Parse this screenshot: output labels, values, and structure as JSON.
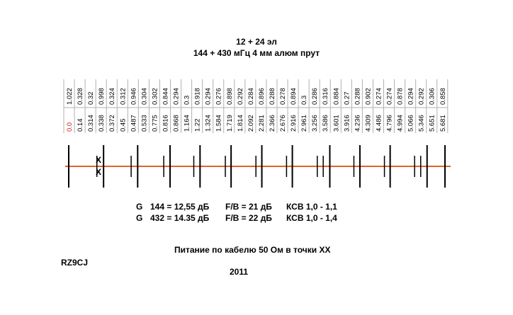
{
  "title": {
    "line1": "12 + 24 эл",
    "line2": "144 + 430 мГц  4 мм алюм прут"
  },
  "spacings": [
    "1.022",
    "0.328",
    "0.32",
    "0.998",
    "0.324",
    "0.312",
    "0.946",
    "0.304",
    "0.302",
    "0.844",
    "0.294",
    "0.3",
    "0.918",
    "0.294",
    "0.276",
    "0.898",
    "0.292",
    "0.284",
    "0.896",
    "0.288",
    "0.278",
    "0.894",
    "0.3",
    "0.286",
    "0.316",
    "0.884",
    "0.27",
    "0.288",
    "0.902",
    "0.274",
    "0.274",
    "0.878",
    "0.294",
    "0.292",
    "0.306",
    "0.858"
  ],
  "positions": [
    "0.0",
    "0.14",
    "0.314",
    "0.338",
    "0.372",
    "0.45",
    "0.487",
    "0.533",
    "0.775",
    "0.816",
    "0.868",
    "1.164",
    "1.22",
    "1.324",
    "1.584",
    "1.719",
    "1.814",
    "2.092",
    "2.281",
    "2.366",
    "2.676",
    "2.916",
    "2.961",
    "3.256",
    "3.586",
    "3.601",
    "3.916",
    "4.236",
    "4.309",
    "4.486",
    "4.796",
    "4.994",
    "5.066",
    "5.346",
    "5.651",
    "5.681"
  ],
  "markers": [
    "X",
    "X"
  ],
  "gain": [
    {
      "g": "G",
      "freq": "144 = 12,55 дБ",
      "fb": "F/B = 21 дБ",
      "ksv": "КСВ  1,0 - 1,1"
    },
    {
      "g": "G",
      "freq": "432 = 14.35 дБ",
      "fb": "F/B = 22 дБ",
      "ksv": "КСВ  1,0 - 1,4"
    }
  ],
  "feed_note": "Питание по кабелю 50 Ом в точки ХХ",
  "author": "RZ9CJ",
  "year": "2011",
  "colors": {
    "boom": "#e0642a",
    "zero_value": "#d41c1c",
    "lines": "#000000",
    "grid": "#b0b0b0"
  }
}
